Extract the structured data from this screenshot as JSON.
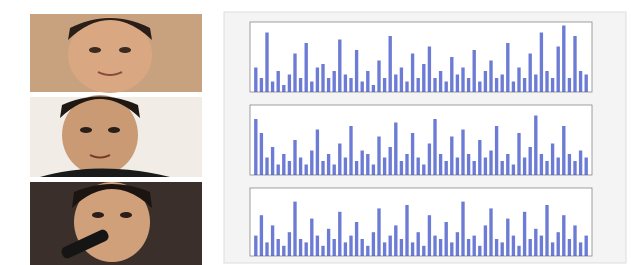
{
  "chart_data": [
    {
      "type": "bar",
      "color": "#3b4fc4",
      "ylim": [
        0,
        100
      ],
      "values": [
        35,
        20,
        85,
        15,
        30,
        10,
        25,
        55,
        20,
        70,
        15,
        35,
        40,
        20,
        30,
        75,
        25,
        20,
        60,
        15,
        30,
        10,
        45,
        20,
        80,
        25,
        35,
        15,
        55,
        20,
        40,
        65,
        20,
        30,
        15,
        50,
        25,
        35,
        20,
        60,
        15,
        30,
        45,
        20,
        25,
        70,
        15,
        35,
        20,
        55,
        25,
        85,
        30,
        20,
        65,
        95,
        20,
        80,
        30,
        25
      ]
    },
    {
      "type": "bar",
      "color": "#3b4fc4",
      "ylim": [
        0,
        100
      ],
      "values": [
        80,
        60,
        25,
        40,
        15,
        30,
        20,
        50,
        25,
        15,
        35,
        65,
        20,
        30,
        15,
        45,
        25,
        70,
        20,
        35,
        30,
        15,
        55,
        25,
        40,
        75,
        20,
        30,
        60,
        25,
        15,
        45,
        80,
        30,
        20,
        55,
        25,
        65,
        30,
        20,
        50,
        25,
        35,
        70,
        20,
        30,
        15,
        60,
        25,
        40,
        85,
        30,
        20,
        45,
        25,
        70,
        30,
        20,
        35,
        25
      ]
    },
    {
      "type": "bar",
      "color": "#3b4fc4",
      "ylim": [
        0,
        100
      ],
      "values": [
        30,
        60,
        20,
        45,
        25,
        15,
        35,
        80,
        25,
        20,
        55,
        30,
        15,
        40,
        25,
        65,
        20,
        30,
        50,
        25,
        15,
        35,
        70,
        20,
        30,
        45,
        25,
        75,
        20,
        35,
        15,
        60,
        30,
        25,
        50,
        20,
        35,
        80,
        25,
        30,
        15,
        45,
        70,
        25,
        20,
        55,
        30,
        15,
        65,
        25,
        40,
        30,
        75,
        20,
        35,
        60,
        25,
        45,
        20,
        30
      ]
    }
  ]
}
